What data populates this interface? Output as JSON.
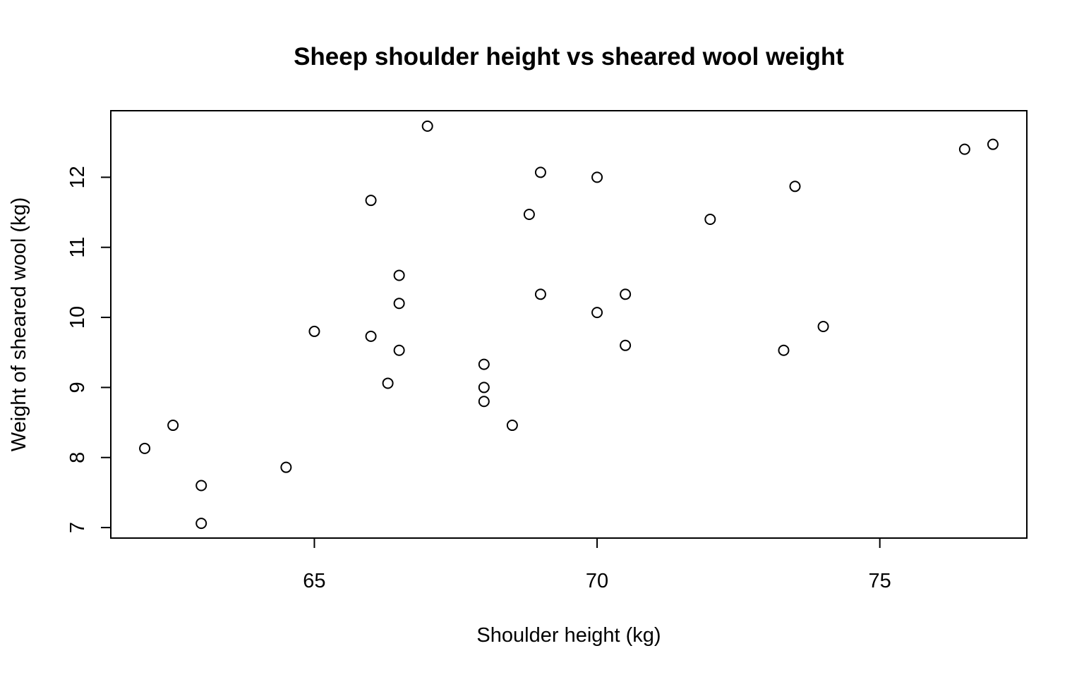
{
  "chart_data": {
    "type": "scatter",
    "title": "Sheep shoulder height vs sheared wool weight",
    "xlabel": "Shoulder height (kg)",
    "ylabel": "Weight of sheared wool (kg)",
    "xlim": [
      61.4,
      77.6
    ],
    "ylim": [
      6.85,
      12.95
    ],
    "xticks": [
      65,
      70,
      75
    ],
    "yticks": [
      7,
      8,
      9,
      10,
      11,
      12
    ],
    "grid": false,
    "marker": "open-circle",
    "points": [
      {
        "x": 62.0,
        "y": 8.13
      },
      {
        "x": 62.5,
        "y": 8.46
      },
      {
        "x": 63.0,
        "y": 7.6
      },
      {
        "x": 63.0,
        "y": 7.06
      },
      {
        "x": 64.5,
        "y": 7.86
      },
      {
        "x": 65.0,
        "y": 9.8
      },
      {
        "x": 66.0,
        "y": 11.67
      },
      {
        "x": 66.0,
        "y": 9.73
      },
      {
        "x": 66.3,
        "y": 9.06
      },
      {
        "x": 66.5,
        "y": 10.6
      },
      {
        "x": 66.5,
        "y": 10.2
      },
      {
        "x": 66.5,
        "y": 9.53
      },
      {
        "x": 67.0,
        "y": 12.73
      },
      {
        "x": 68.0,
        "y": 9.33
      },
      {
        "x": 68.0,
        "y": 9.0
      },
      {
        "x": 68.0,
        "y": 8.8
      },
      {
        "x": 68.5,
        "y": 8.46
      },
      {
        "x": 68.8,
        "y": 11.47
      },
      {
        "x": 69.0,
        "y": 12.07
      },
      {
        "x": 69.0,
        "y": 10.33
      },
      {
        "x": 70.0,
        "y": 12.0
      },
      {
        "x": 70.0,
        "y": 10.07
      },
      {
        "x": 70.5,
        "y": 10.33
      },
      {
        "x": 70.5,
        "y": 9.6
      },
      {
        "x": 72.0,
        "y": 11.4
      },
      {
        "x": 73.3,
        "y": 9.53
      },
      {
        "x": 73.5,
        "y": 11.87
      },
      {
        "x": 74.0,
        "y": 9.87
      },
      {
        "x": 76.5,
        "y": 12.4
      },
      {
        "x": 77.0,
        "y": 12.47
      }
    ]
  }
}
